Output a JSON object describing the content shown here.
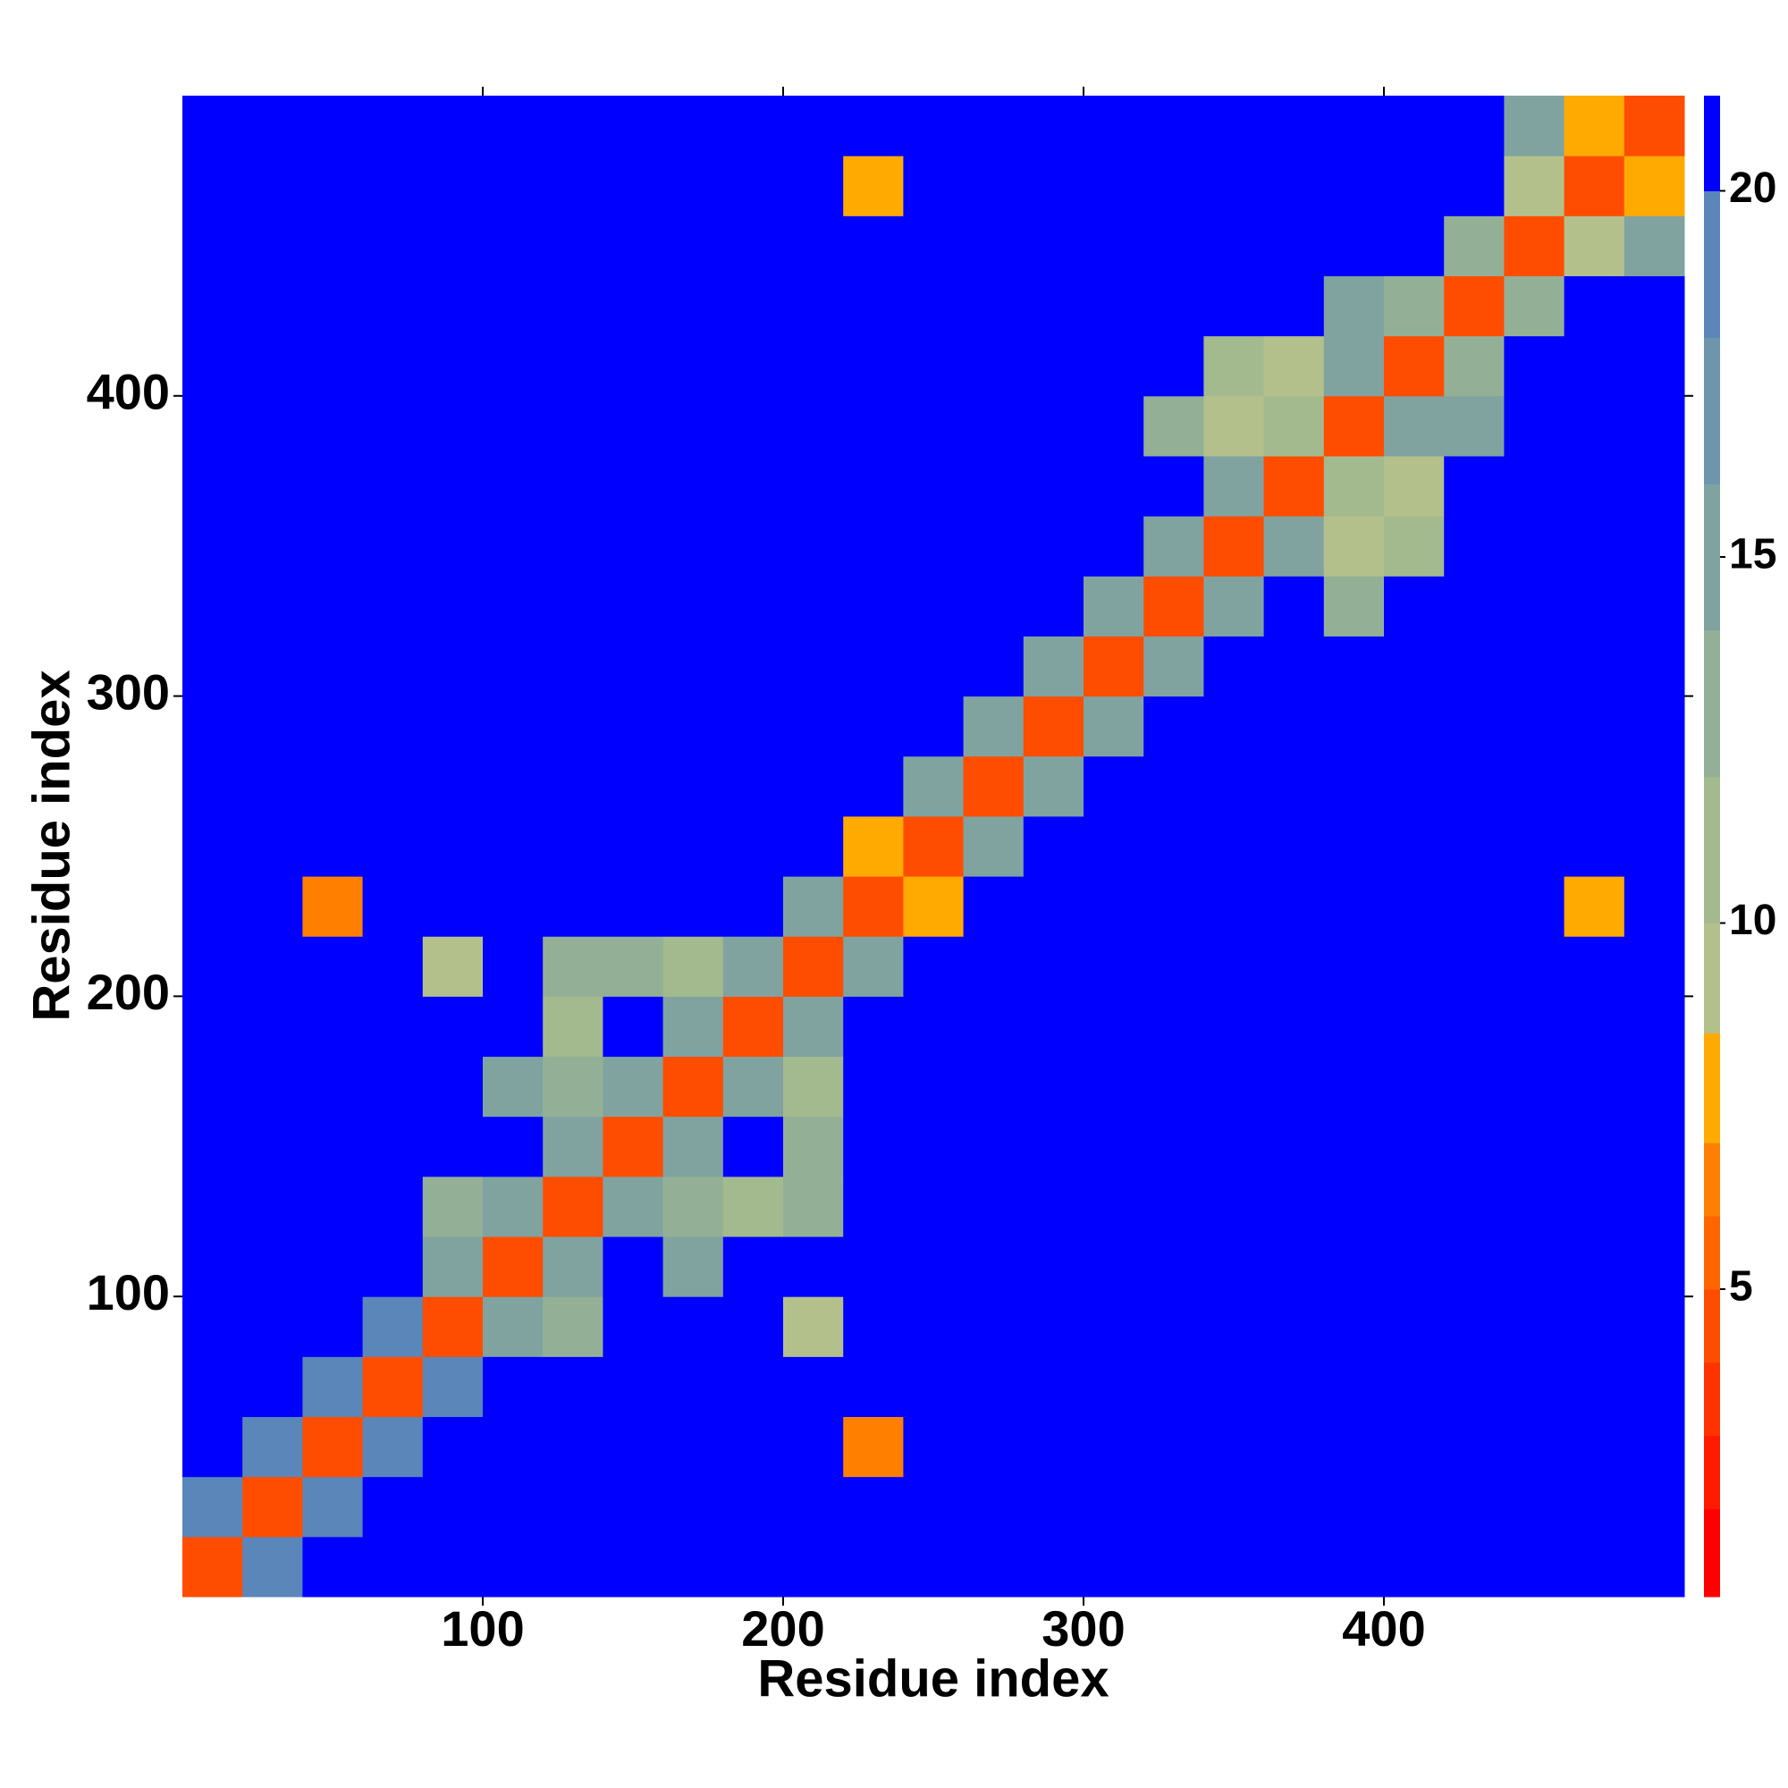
{
  "chart_data": {
    "type": "heatmap",
    "xlabel": "Residue index",
    "ylabel": "Residue index",
    "xbins": [
      0,
      20,
      40,
      60,
      80,
      100,
      120,
      140,
      160,
      180,
      200,
      220,
      240,
      260,
      280,
      300,
      320,
      340,
      360,
      380,
      400,
      420,
      440,
      460,
      480,
      500
    ],
    "ybins": [
      0,
      20,
      40,
      60,
      80,
      100,
      120,
      140,
      160,
      180,
      200,
      220,
      240,
      260,
      280,
      300,
      320,
      340,
      360,
      380,
      400,
      420,
      440,
      460,
      480,
      500
    ],
    "xlim": [
      0,
      500
    ],
    "ylim": [
      0,
      500
    ],
    "xticks": [
      100,
      200,
      300,
      400
    ],
    "yticks": [
      100,
      200,
      300,
      400
    ],
    "z": [
      [
        4,
        19,
        21,
        21,
        21,
        21,
        21,
        21,
        21,
        21,
        21,
        21,
        21,
        21,
        21,
        21,
        21,
        21,
        21,
        21,
        21,
        21,
        21,
        21,
        21
      ],
      [
        19,
        4,
        19,
        21,
        21,
        21,
        21,
        21,
        21,
        21,
        21,
        21,
        21,
        21,
        21,
        21,
        21,
        21,
        21,
        21,
        21,
        21,
        21,
        21,
        21
      ],
      [
        21,
        19,
        4,
        19,
        21,
        21,
        21,
        21,
        21,
        21,
        21,
        6,
        21,
        21,
        21,
        21,
        21,
        21,
        21,
        21,
        21,
        21,
        21,
        21,
        21
      ],
      [
        21,
        21,
        19,
        4,
        19,
        21,
        21,
        21,
        21,
        21,
        21,
        21,
        21,
        21,
        21,
        21,
        21,
        21,
        21,
        21,
        21,
        21,
        21,
        21,
        21
      ],
      [
        21,
        21,
        21,
        19,
        4,
        14,
        13,
        21,
        21,
        21,
        9,
        21,
        21,
        21,
        21,
        21,
        21,
        21,
        21,
        21,
        21,
        21,
        21,
        21,
        21
      ],
      [
        21,
        21,
        21,
        21,
        14,
        4,
        14,
        21,
        15,
        21,
        21,
        21,
        21,
        21,
        21,
        21,
        21,
        21,
        21,
        21,
        21,
        21,
        21,
        21,
        21
      ],
      [
        21,
        21,
        21,
        21,
        13,
        14,
        4,
        14,
        13,
        11,
        12,
        21,
        21,
        21,
        21,
        21,
        21,
        21,
        21,
        21,
        21,
        21,
        21,
        21,
        21
      ],
      [
        21,
        21,
        21,
        21,
        21,
        21,
        14,
        4,
        14,
        21,
        12,
        21,
        21,
        21,
        21,
        21,
        21,
        21,
        21,
        21,
        21,
        21,
        21,
        21,
        21
      ],
      [
        21,
        21,
        21,
        21,
        21,
        15,
        13,
        14,
        4,
        14,
        11,
        21,
        21,
        21,
        21,
        21,
        21,
        21,
        21,
        21,
        21,
        21,
        21,
        21,
        21
      ],
      [
        21,
        21,
        21,
        21,
        21,
        21,
        11,
        21,
        14,
        4,
        14,
        21,
        21,
        21,
        21,
        21,
        21,
        21,
        21,
        21,
        21,
        21,
        21,
        21,
        21
      ],
      [
        21,
        21,
        21,
        21,
        9,
        21,
        12,
        12,
        11,
        14,
        4,
        14,
        21,
        21,
        21,
        21,
        21,
        21,
        21,
        21,
        21,
        21,
        21,
        21,
        21
      ],
      [
        21,
        21,
        6,
        21,
        21,
        21,
        21,
        21,
        21,
        21,
        14,
        4,
        8,
        21,
        21,
        21,
        21,
        21,
        21,
        21,
        21,
        21,
        21,
        8,
        21
      ],
      [
        21,
        21,
        21,
        21,
        21,
        21,
        21,
        21,
        21,
        21,
        21,
        8,
        4,
        14,
        21,
        21,
        21,
        21,
        21,
        21,
        21,
        21,
        21,
        21,
        21
      ],
      [
        21,
        21,
        21,
        21,
        21,
        21,
        21,
        21,
        21,
        21,
        21,
        21,
        14,
        4,
        14,
        21,
        21,
        21,
        21,
        21,
        21,
        21,
        21,
        21,
        21
      ],
      [
        21,
        21,
        21,
        21,
        21,
        21,
        21,
        21,
        21,
        21,
        21,
        21,
        21,
        14,
        4,
        14,
        21,
        21,
        21,
        21,
        21,
        21,
        21,
        21,
        21
      ],
      [
        21,
        21,
        21,
        21,
        21,
        21,
        21,
        21,
        21,
        21,
        21,
        21,
        21,
        21,
        14,
        4,
        14,
        21,
        21,
        21,
        21,
        21,
        21,
        21,
        21
      ],
      [
        21,
        21,
        21,
        21,
        21,
        21,
        21,
        21,
        21,
        21,
        21,
        21,
        21,
        21,
        21,
        14,
        4,
        14,
        21,
        12,
        21,
        21,
        21,
        21,
        21
      ],
      [
        21,
        21,
        21,
        21,
        21,
        21,
        21,
        21,
        21,
        21,
        21,
        21,
        21,
        21,
        21,
        21,
        14,
        4,
        14,
        9,
        11,
        21,
        21,
        21,
        21
      ],
      [
        21,
        21,
        21,
        21,
        21,
        21,
        21,
        21,
        21,
        21,
        21,
        21,
        21,
        21,
        21,
        21,
        21,
        14,
        4,
        10,
        9,
        21,
        21,
        21,
        21
      ],
      [
        21,
        21,
        21,
        21,
        21,
        21,
        21,
        21,
        21,
        21,
        21,
        21,
        21,
        21,
        21,
        21,
        12,
        9,
        10,
        4,
        14,
        14,
        21,
        21,
        21
      ],
      [
        21,
        21,
        21,
        21,
        21,
        21,
        21,
        21,
        21,
        21,
        21,
        21,
        21,
        21,
        21,
        21,
        21,
        11,
        9,
        14,
        4,
        13,
        21,
        21,
        21
      ],
      [
        21,
        21,
        21,
        21,
        21,
        21,
        21,
        21,
        21,
        21,
        21,
        21,
        21,
        21,
        21,
        21,
        21,
        21,
        21,
        14,
        13,
        4,
        13,
        21,
        21
      ],
      [
        21,
        21,
        21,
        21,
        21,
        21,
        21,
        21,
        21,
        21,
        21,
        21,
        21,
        21,
        21,
        21,
        21,
        21,
        21,
        21,
        21,
        13,
        4,
        9,
        14
      ],
      [
        21,
        21,
        21,
        21,
        21,
        21,
        21,
        21,
        21,
        21,
        21,
        8,
        21,
        21,
        21,
        21,
        21,
        21,
        21,
        21,
        21,
        21,
        9,
        4,
        8
      ],
      [
        21,
        21,
        21,
        21,
        21,
        21,
        21,
        21,
        21,
        21,
        21,
        21,
        21,
        21,
        21,
        21,
        21,
        21,
        21,
        21,
        21,
        21,
        14,
        8,
        4
      ]
    ],
    "colorbar": {
      "lim": [
        0.8,
        21.3
      ],
      "ticks": [
        5,
        10,
        15,
        20
      ],
      "bounds": [
        0.8,
        2,
        3,
        4,
        5,
        6,
        7,
        8.5,
        10,
        12,
        14,
        16,
        18,
        20,
        21.3
      ],
      "colors": [
        "#ff0000",
        "#ff1a00",
        "#ff3300",
        "#ff4d00",
        "#ff6600",
        "#ff8000",
        "#ffaa00",
        "#b4c08c",
        "#a3ba8e",
        "#93b096",
        "#80a3a0",
        "#6d95ac",
        "#5a86ba",
        "#0000ff"
      ]
    }
  }
}
